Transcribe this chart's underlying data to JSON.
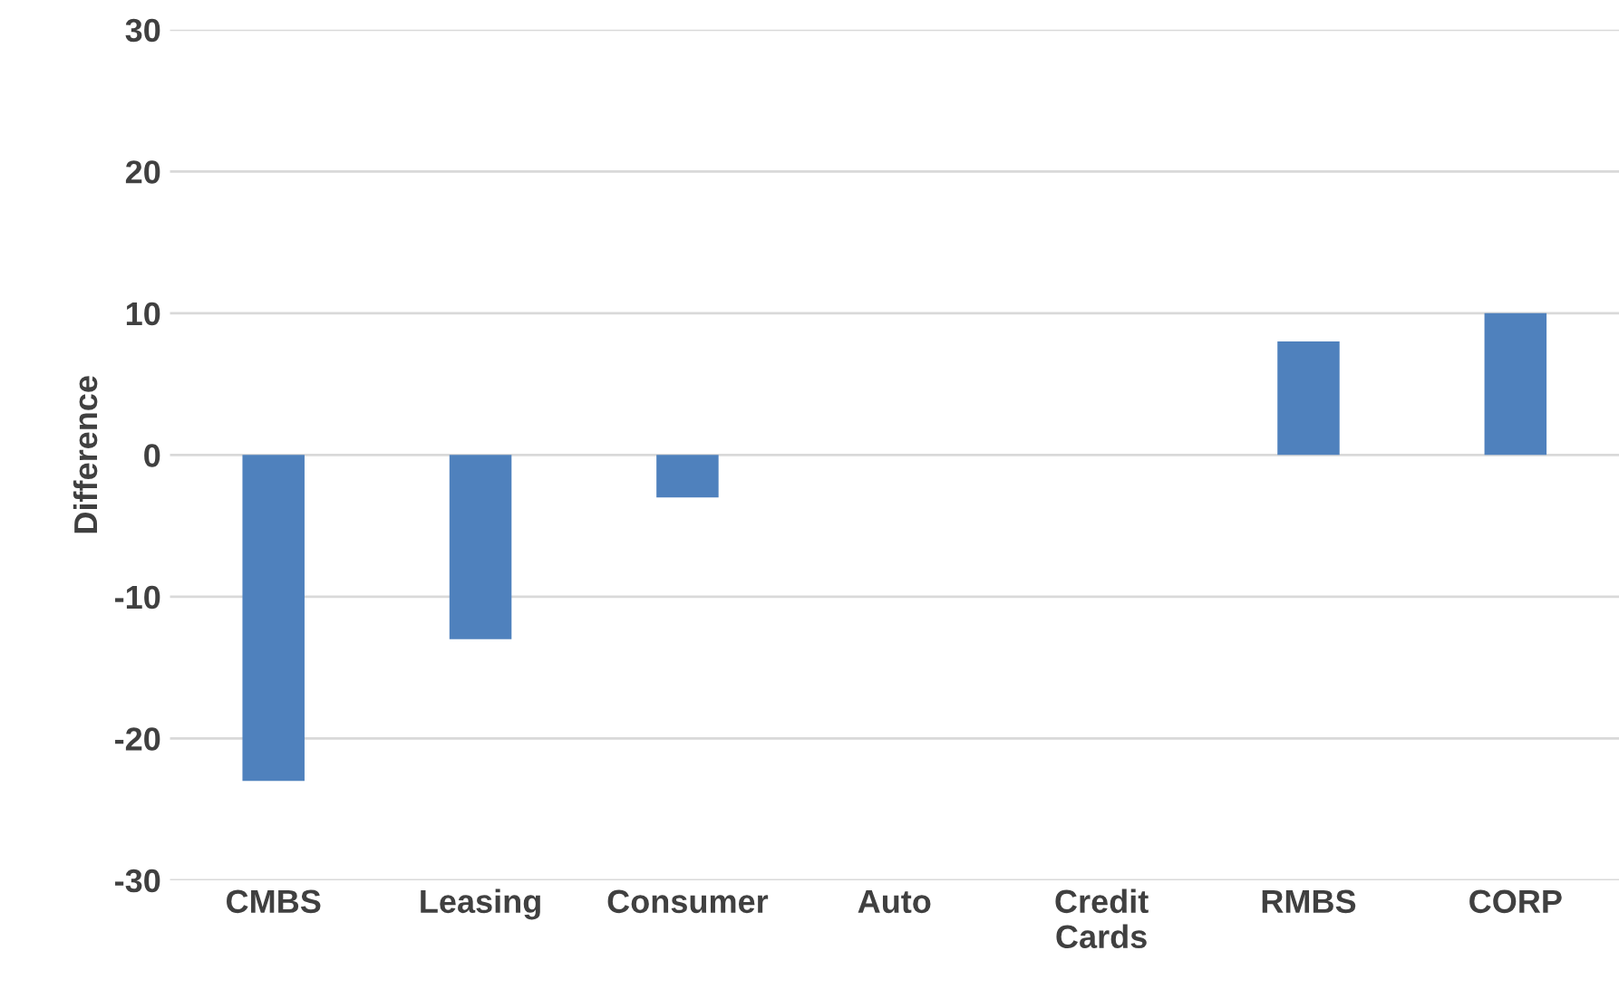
{
  "chart_data": {
    "type": "bar",
    "ylabel": "Difference",
    "categories": [
      "CMBS",
      "Leasing",
      "Consumer",
      "Auto",
      "Credit\nCards",
      "RMBS",
      "CORP"
    ],
    "values": [
      -23,
      -13,
      -3,
      0,
      0,
      8,
      10
    ],
    "color": "#4f81bd",
    "ylim": [
      -30,
      30
    ],
    "yticks": [
      -30,
      -20,
      -10,
      0,
      10,
      20,
      30
    ],
    "grid": "y"
  }
}
